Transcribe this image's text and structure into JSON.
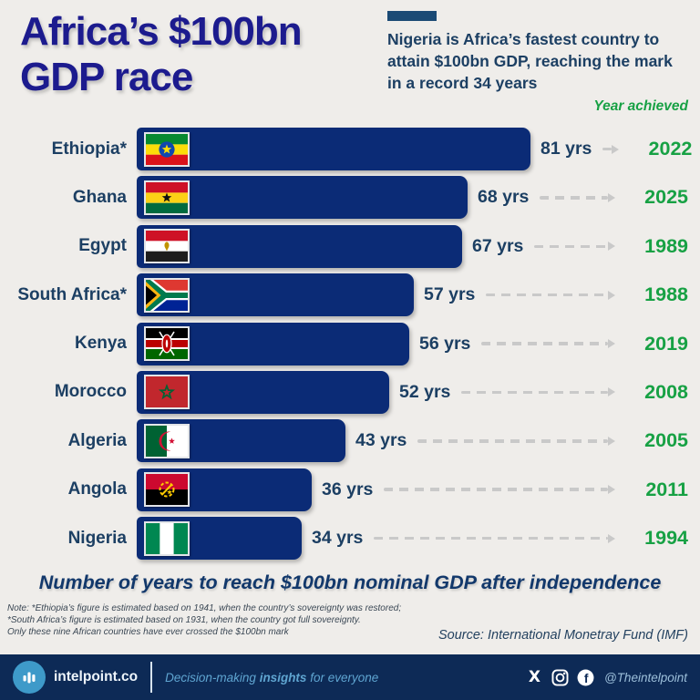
{
  "theme": {
    "page_bg": "#efedea",
    "title_color": "#1c1b8e",
    "navy_text": "#1c3f63",
    "bar_color": "#0b2b76",
    "green": "#17a144",
    "dash_gray": "#c9c9c9",
    "accent_rect": "#1b4a75",
    "footer_bg": "#0d2a56",
    "logo_blue": "#3e9ac9",
    "tagline_blue": "#5fa5d1"
  },
  "header": {
    "title_line1": "Africa’s $100bn",
    "title_line2": "GDP race",
    "subtitle": "Nigeria is Africa’s fastest country to attain $100bn GDP, reaching the mark in a record 34 years",
    "year_achieved_label": "Year achieved"
  },
  "chart_data": {
    "type": "bar",
    "orientation": "horizontal",
    "title": "Africa’s $100bn GDP race",
    "caption": "Number of years to reach $100bn nominal GDP after independence",
    "unit": "yrs",
    "axis_max": 81,
    "categories": [
      "Ethiopia*",
      "Ghana",
      "Egypt",
      "South Africa*",
      "Kenya",
      "Morocco",
      "Algeria",
      "Angola",
      "Nigeria"
    ],
    "values": [
      81,
      68,
      67,
      57,
      56,
      52,
      43,
      36,
      34
    ],
    "rows": [
      {
        "country": "Ethiopia*",
        "flag": "ethiopia-flag",
        "years": 81,
        "year_achieved": "2022"
      },
      {
        "country": "Ghana",
        "flag": "ghana-flag",
        "years": 68,
        "year_achieved": "2025"
      },
      {
        "country": "Egypt",
        "flag": "egypt-flag",
        "years": 67,
        "year_achieved": "1989"
      },
      {
        "country": "South Africa*",
        "flag": "south-africa-flag",
        "years": 57,
        "year_achieved": "1988"
      },
      {
        "country": "Kenya",
        "flag": "kenya-flag",
        "years": 56,
        "year_achieved": "2019"
      },
      {
        "country": "Morocco",
        "flag": "morocco-flag",
        "years": 52,
        "year_achieved": "2008"
      },
      {
        "country": "Algeria",
        "flag": "algeria-flag",
        "years": 43,
        "year_achieved": "2005"
      },
      {
        "country": "Angola",
        "flag": "angola-flag",
        "years": 36,
        "year_achieved": "2011"
      },
      {
        "country": "Nigeria",
        "flag": "nigeria-flag",
        "years": 34,
        "year_achieved": "1994"
      }
    ],
    "legend": "Year achieved",
    "grid": false
  },
  "notes": {
    "lines": [
      "Note: *Ethiopia’s figure is estimated based on 1941, when the country’s sovereignty was restored;",
      "*South Africa’s figure is estimated based on 1931, when the country got full sovereignty.",
      "Only these nine African countries have ever crossed the $100bn mark"
    ]
  },
  "source": "Source: International Monetray Fund (IMF)",
  "footer": {
    "brand": "intelpoint.co",
    "tagline_prefix": "Decision-making ",
    "tagline_bold": "insights",
    "tagline_suffix": " for everyone",
    "social_handle": "@Theintelpoint",
    "icons": [
      "x-icon",
      "instagram-icon",
      "facebook-icon"
    ]
  }
}
